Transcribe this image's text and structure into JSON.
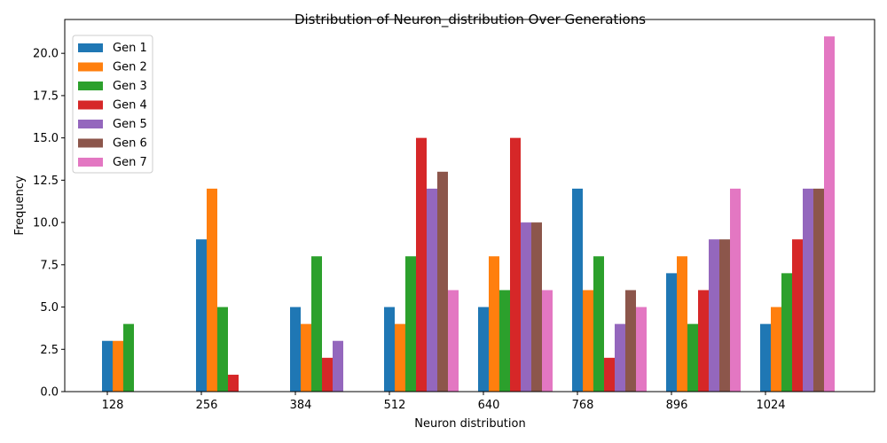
{
  "chart_data": {
    "type": "bar",
    "title": "Distribution of Neuron_distribution Over Generations",
    "xlabel": "Neuron distribution",
    "ylabel": "Frequency",
    "categories": [
      "128",
      "256",
      "384",
      "512",
      "640",
      "768",
      "896",
      "1024"
    ],
    "ylim": [
      0,
      22
    ],
    "yticks": [
      "0.0",
      "2.5",
      "5.0",
      "7.5",
      "10.0",
      "12.5",
      "15.0",
      "17.5",
      "20.0"
    ],
    "legend_position": "top-left",
    "grid": false,
    "series": [
      {
        "name": "Gen 1",
        "color": "#1f77b4",
        "values": [
          3,
          9,
          5,
          5,
          5,
          12,
          7,
          4
        ]
      },
      {
        "name": "Gen 2",
        "color": "#ff7f0e",
        "values": [
          3,
          12,
          4,
          4,
          8,
          6,
          8,
          5
        ]
      },
      {
        "name": "Gen 3",
        "color": "#2ca02c",
        "values": [
          4,
          5,
          8,
          8,
          6,
          8,
          4,
          7
        ]
      },
      {
        "name": "Gen 4",
        "color": "#d62728",
        "values": [
          0,
          1,
          2,
          15,
          15,
          2,
          6,
          9
        ]
      },
      {
        "name": "Gen 5",
        "color": "#9467bd",
        "values": [
          0,
          0,
          3,
          12,
          10,
          4,
          9,
          12
        ]
      },
      {
        "name": "Gen 6",
        "color": "#8c564b",
        "values": [
          0,
          0,
          0,
          13,
          10,
          6,
          9,
          12
        ]
      },
      {
        "name": "Gen 7",
        "color": "#e377c2",
        "values": [
          0,
          0,
          0,
          6,
          6,
          5,
          12,
          21
        ]
      }
    ]
  }
}
